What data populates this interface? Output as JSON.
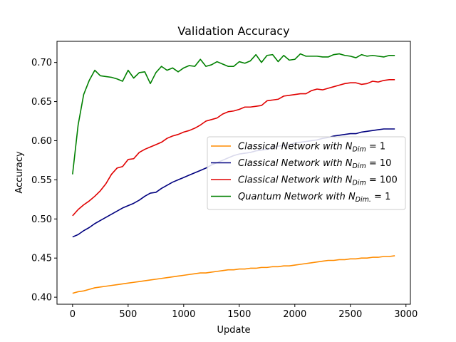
{
  "chart_data": {
    "type": "line",
    "title": "Validation Accuracy",
    "xlabel": "Update",
    "ylabel": "Accuracy",
    "xlim": [
      -140,
      3040
    ],
    "ylim": [
      0.391,
      0.727
    ],
    "xticks": [
      0,
      500,
      1000,
      1500,
      2000,
      2500,
      3000
    ],
    "xtick_labels": [
      "0",
      "500",
      "1000",
      "1500",
      "2000",
      "2500",
      "3000"
    ],
    "yticks": [
      0.4,
      0.45,
      0.5,
      0.55,
      0.6,
      0.65,
      0.7
    ],
    "ytick_labels": [
      "0.40",
      "0.45",
      "0.50",
      "0.55",
      "0.60",
      "0.65",
      "0.70"
    ],
    "grid": false,
    "legend_position": "center-right",
    "x": [
      0,
      50,
      100,
      150,
      200,
      250,
      300,
      350,
      400,
      450,
      500,
      550,
      600,
      650,
      700,
      750,
      800,
      850,
      900,
      950,
      1000,
      1050,
      1100,
      1150,
      1200,
      1250,
      1300,
      1350,
      1400,
      1450,
      1500,
      1550,
      1600,
      1650,
      1700,
      1750,
      1800,
      1850,
      1900,
      1950,
      2000,
      2050,
      2100,
      2150,
      2200,
      2250,
      2300,
      2350,
      2400,
      2450,
      2500,
      2550,
      2600,
      2650,
      2700,
      2750,
      2800,
      2850,
      2900
    ],
    "series": [
      {
        "name_prefix": "Classical Network with ",
        "name_var": "N",
        "name_sub": "Dim",
        "name_suffix": " = 1",
        "color": "#ff8c00",
        "values": [
          0.405,
          0.407,
          0.408,
          0.41,
          0.412,
          0.413,
          0.414,
          0.415,
          0.416,
          0.417,
          0.418,
          0.419,
          0.42,
          0.421,
          0.422,
          0.423,
          0.424,
          0.425,
          0.426,
          0.427,
          0.428,
          0.429,
          0.43,
          0.431,
          0.431,
          0.432,
          0.433,
          0.434,
          0.435,
          0.435,
          0.436,
          0.436,
          0.437,
          0.437,
          0.438,
          0.438,
          0.439,
          0.439,
          0.44,
          0.44,
          0.441,
          0.442,
          0.443,
          0.444,
          0.445,
          0.446,
          0.447,
          0.447,
          0.448,
          0.448,
          0.449,
          0.449,
          0.45,
          0.45,
          0.451,
          0.451,
          0.452,
          0.452,
          0.453
        ]
      },
      {
        "name_prefix": "Classical Network with ",
        "name_var": "N",
        "name_sub": "Dim",
        "name_suffix": " = 10",
        "color": "#00007f",
        "values": [
          0.477,
          0.48,
          0.485,
          0.489,
          0.494,
          0.498,
          0.502,
          0.506,
          0.51,
          0.514,
          0.517,
          0.52,
          0.524,
          0.529,
          0.533,
          0.534,
          0.539,
          0.543,
          0.547,
          0.55,
          0.553,
          0.556,
          0.559,
          0.562,
          0.565,
          0.569,
          0.572,
          0.575,
          0.578,
          0.581,
          0.583,
          0.584,
          0.585,
          0.587,
          0.588,
          0.589,
          0.591,
          0.593,
          0.594,
          0.595,
          0.597,
          0.598,
          0.599,
          0.6,
          0.601,
          0.603,
          0.604,
          0.606,
          0.607,
          0.608,
          0.609,
          0.609,
          0.611,
          0.612,
          0.613,
          0.614,
          0.615,
          0.615,
          0.615
        ]
      },
      {
        "name_prefix": "Classical Network with ",
        "name_var": "N",
        "name_sub": "Dim",
        "name_suffix": " = 100",
        "color": "#e00000",
        "values": [
          0.504,
          0.512,
          0.518,
          0.523,
          0.529,
          0.536,
          0.545,
          0.557,
          0.565,
          0.567,
          0.576,
          0.577,
          0.585,
          0.589,
          0.592,
          0.595,
          0.598,
          0.603,
          0.606,
          0.608,
          0.611,
          0.613,
          0.616,
          0.62,
          0.625,
          0.627,
          0.629,
          0.634,
          0.637,
          0.638,
          0.64,
          0.643,
          0.643,
          0.644,
          0.645,
          0.651,
          0.652,
          0.653,
          0.657,
          0.658,
          0.659,
          0.66,
          0.66,
          0.664,
          0.666,
          0.665,
          0.667,
          0.669,
          0.671,
          0.673,
          0.674,
          0.674,
          0.672,
          0.673,
          0.676,
          0.675,
          0.677,
          0.678,
          0.678
        ]
      },
      {
        "name_prefix": "Quantum Network with ",
        "name_var": "N",
        "name_sub": "Dim.",
        "name_suffix": " = 1",
        "color": "#008000",
        "values": [
          0.557,
          0.62,
          0.659,
          0.677,
          0.69,
          0.683,
          0.682,
          0.681,
          0.679,
          0.676,
          0.69,
          0.68,
          0.687,
          0.688,
          0.673,
          0.687,
          0.695,
          0.69,
          0.693,
          0.688,
          0.693,
          0.696,
          0.695,
          0.704,
          0.695,
          0.697,
          0.701,
          0.698,
          0.695,
          0.695,
          0.701,
          0.699,
          0.702,
          0.71,
          0.7,
          0.709,
          0.71,
          0.701,
          0.709,
          0.703,
          0.704,
          0.711,
          0.708,
          0.708,
          0.708,
          0.707,
          0.707,
          0.71,
          0.711,
          0.709,
          0.708,
          0.706,
          0.71,
          0.708,
          0.709,
          0.708,
          0.707,
          0.709,
          0.709
        ]
      }
    ]
  }
}
